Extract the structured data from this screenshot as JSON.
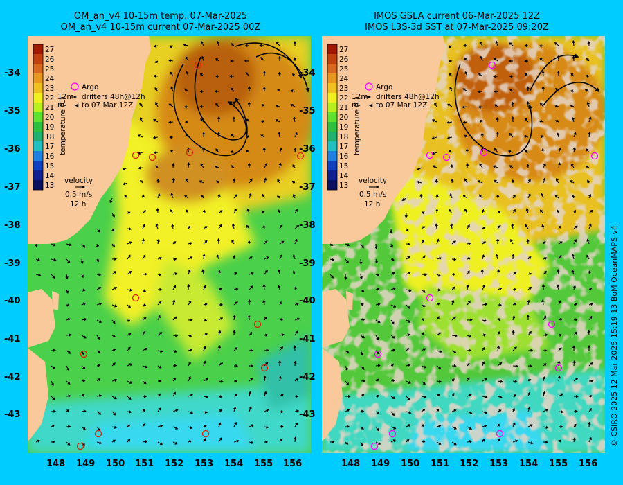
{
  "left_panel": {
    "title_line1": "OM_an_v4  10-15m temp. 07-Mar-2025",
    "title_line2": "OM_an_v4  10-15m current 07-Mar-2025 00Z"
  },
  "right_panel": {
    "title_line1": "IMOS GSLA current 06-Mar-2025 12Z",
    "title_line2": "IMOS L3S-3d SST at 07-Mar-2025 09:20Z"
  },
  "colorbar": {
    "label": "temperature (C)",
    "ticks": [
      "27",
      "26",
      "25",
      "24",
      "23",
      "22",
      "21",
      "20",
      "19",
      "18",
      "17",
      "16",
      "15",
      "14",
      "13"
    ]
  },
  "legend": {
    "argo_label": "Argo",
    "drifter_text1": "12m",
    "drifter_text2": "drifters 48h@12h",
    "drifter_text3": "m",
    "drifter_text4": "to 07 Mar 12Z",
    "velocity_label": "velocity",
    "velocity_speed": "0.5 m/s",
    "velocity_time": "12 h"
  },
  "axes": {
    "lat_ticks": [
      "-34",
      "-35",
      "-36",
      "-37",
      "-38",
      "-39",
      "-40",
      "-41",
      "-42",
      "-43"
    ],
    "lon_ticks": [
      "148",
      "149",
      "150",
      "151",
      "152",
      "153",
      "154",
      "155",
      "156"
    ]
  },
  "credit": "© CSIRO 2025   12 Mar 2025 15:19:13 BoM OceanMAPS v4",
  "colors": {
    "background": "#00ccff",
    "land": "#f9c99b",
    "land_mask_cloud": "#c8a98f",
    "argo_marker_left": "#dd2200",
    "argo_marker_right": "#ff00ff",
    "warm_eddy": "#d07a10",
    "green_water": "#44cc44",
    "yellow_water": "#f0f020",
    "cyan_water": "#30e0e0"
  },
  "icons": [
    "argo-circle-icon",
    "drifter-arrow-icon",
    "velocity-arrow-icon"
  ]
}
